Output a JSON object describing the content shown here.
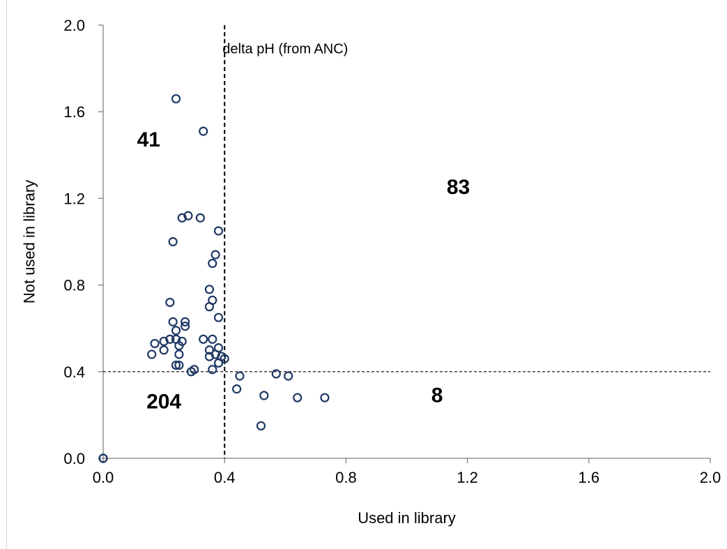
{
  "chart_data": {
    "type": "scatter",
    "title": "",
    "xlabel": "Used in library",
    "ylabel": "Not used in library",
    "xlim": [
      0,
      2.0
    ],
    "ylim": [
      0,
      2.0
    ],
    "x_ticks": [
      "0.0",
      "0.4",
      "0.8",
      "1.2",
      "1.6",
      "2.0"
    ],
    "y_ticks": [
      "0.0",
      "0.4",
      "0.8",
      "1.2",
      "1.6",
      "2.0"
    ],
    "grid": false,
    "marker": "open-circle",
    "marker_color": "#1f3864",
    "threshold_x": 0.4,
    "threshold_y": 0.4,
    "annotations": [
      {
        "text": "delta pH (from ANC)",
        "x": 0.6,
        "y": 1.87,
        "style": "label"
      },
      {
        "text": "41",
        "x": 0.15,
        "y": 1.44,
        "style": "count"
      },
      {
        "text": "83",
        "x": 1.17,
        "y": 1.22,
        "style": "count"
      },
      {
        "text": "204",
        "x": 0.2,
        "y": 0.23,
        "style": "count"
      },
      {
        "text": "8",
        "x": 1.1,
        "y": 0.26,
        "style": "count"
      }
    ],
    "series": [
      {
        "points": [
          [
            0.0,
            0.0
          ],
          [
            0.0,
            0.0
          ],
          [
            0.24,
            1.66
          ],
          [
            0.33,
            1.51
          ],
          [
            0.26,
            1.11
          ],
          [
            0.28,
            1.12
          ],
          [
            0.32,
            1.11
          ],
          [
            0.38,
            1.05
          ],
          [
            0.23,
            1.0
          ],
          [
            0.37,
            0.94
          ],
          [
            0.36,
            0.9
          ],
          [
            0.35,
            0.78
          ],
          [
            0.36,
            0.73
          ],
          [
            0.35,
            0.7
          ],
          [
            0.22,
            0.72
          ],
          [
            0.38,
            0.65
          ],
          [
            0.23,
            0.63
          ],
          [
            0.27,
            0.63
          ],
          [
            0.27,
            0.61
          ],
          [
            0.24,
            0.59
          ],
          [
            0.24,
            0.55
          ],
          [
            0.33,
            0.55
          ],
          [
            0.36,
            0.55
          ],
          [
            0.22,
            0.55
          ],
          [
            0.2,
            0.54
          ],
          [
            0.26,
            0.54
          ],
          [
            0.17,
            0.53
          ],
          [
            0.25,
            0.52
          ],
          [
            0.38,
            0.51
          ],
          [
            0.2,
            0.5
          ],
          [
            0.35,
            0.5
          ],
          [
            0.37,
            0.48
          ],
          [
            0.16,
            0.48
          ],
          [
            0.25,
            0.48
          ],
          [
            0.35,
            0.47
          ],
          [
            0.39,
            0.47
          ],
          [
            0.4,
            0.46
          ],
          [
            0.38,
            0.44
          ],
          [
            0.25,
            0.43
          ],
          [
            0.24,
            0.43
          ],
          [
            0.36,
            0.41
          ],
          [
            0.3,
            0.41
          ],
          [
            0.29,
            0.4
          ],
          [
            0.45,
            0.38
          ],
          [
            0.57,
            0.39
          ],
          [
            0.61,
            0.38
          ],
          [
            0.44,
            0.32
          ],
          [
            0.53,
            0.29
          ],
          [
            0.64,
            0.28
          ],
          [
            0.73,
            0.28
          ],
          [
            0.52,
            0.15
          ]
        ]
      }
    ]
  }
}
